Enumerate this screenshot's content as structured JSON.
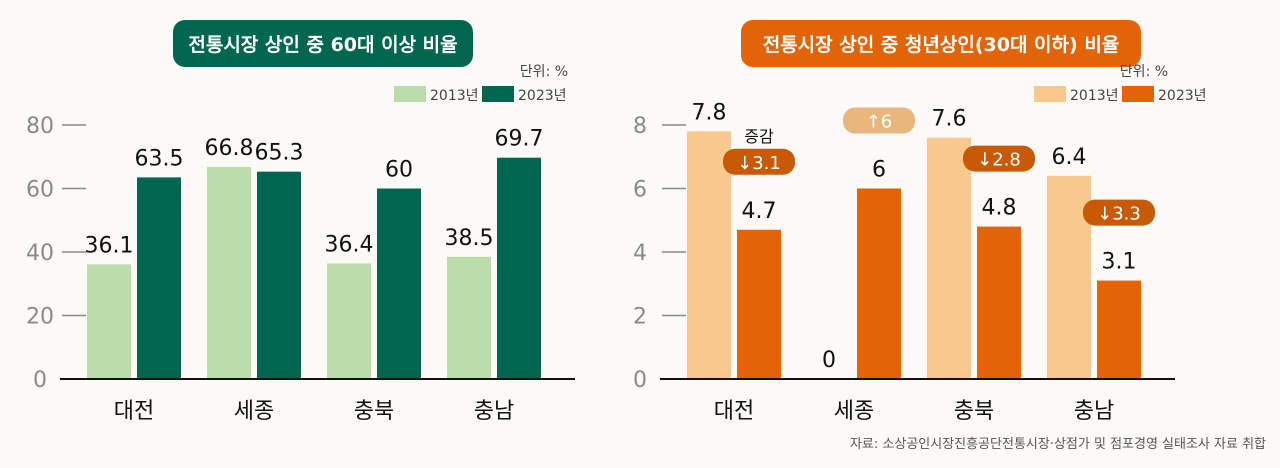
{
  "chart_data": [
    {
      "type": "bar",
      "title": "전통시장 상인 중 60대 이상 비율",
      "unit": "단위: %",
      "categories": [
        "대전",
        "세종",
        "충북",
        "충남"
      ],
      "series": [
        {
          "name": "2013년",
          "color": "#bcdcab",
          "values": [
            36.1,
            66.8,
            36.4,
            38.5
          ]
        },
        {
          "name": "2023년",
          "color": "#006650",
          "values": [
            63.5,
            65.3,
            60,
            69.7
          ]
        }
      ],
      "yticks": [
        0,
        20,
        40,
        60,
        80
      ],
      "ylim": [
        0,
        80
      ],
      "title_color": "#006650"
    },
    {
      "type": "bar",
      "title": "전통시장 상인 중 청년상인(30대 이하) 비율",
      "unit": "단위: %",
      "categories": [
        "대전",
        "세종",
        "충북",
        "충남"
      ],
      "series": [
        {
          "name": "2013년",
          "color": "#f8c98c",
          "values": [
            7.8,
            0,
            7.6,
            6.4
          ]
        },
        {
          "name": "2023년",
          "color": "#e26406",
          "values": [
            4.7,
            6,
            4.8,
            3.1
          ]
        }
      ],
      "yticks": [
        0,
        2,
        4,
        6,
        8
      ],
      "ylim": [
        0,
        8
      ],
      "title_color": "#e26406",
      "change_label": "증감",
      "changes": [
        {
          "text": "↓3.1",
          "color": "#c85a06"
        },
        {
          "text": "↑6",
          "color": "#e9b77d"
        },
        {
          "text": "↓2.8",
          "color": "#c85a06"
        },
        {
          "text": "↓3.3",
          "color": "#c85a06"
        }
      ]
    }
  ],
  "source": "자료: 소상공인시장진흥공단전통시장·상점가 및 점포경영 실태조사 자료 취합"
}
